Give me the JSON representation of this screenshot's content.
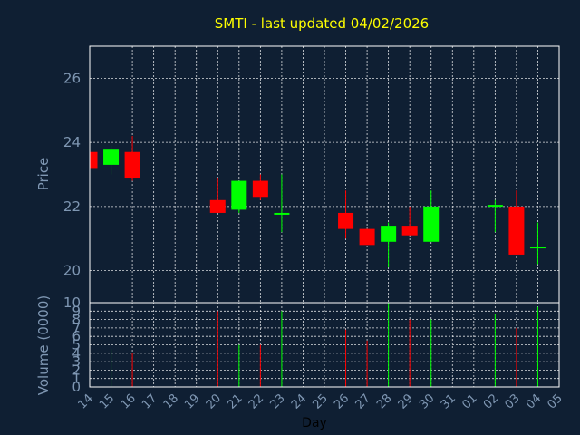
{
  "chart_data": {
    "type": "candlestick",
    "title": "SMTI - last updated 04/02/2026",
    "xlabel": "Day",
    "ylabel_price": "Price",
    "ylabel_volume": "Volume (0000)",
    "price_ylim": [
      19,
      27
    ],
    "price_ticks": [
      20,
      22,
      24,
      26
    ],
    "volume_ylim": [
      0,
      10
    ],
    "volume_ticks": [
      0,
      1,
      2,
      3,
      4,
      5,
      6,
      7,
      8,
      9,
      10
    ],
    "x_tick_labels": [
      "14",
      "15",
      "16",
      "17",
      "18",
      "19",
      "20",
      "21",
      "22",
      "23",
      "24",
      "25",
      "26",
      "27",
      "28",
      "29",
      "30",
      "31",
      "01",
      "02",
      "03",
      "04",
      "05"
    ],
    "grid": true,
    "up_color": "#00ff00",
    "down_color": "#ff0000",
    "background_color": "#0f1f33",
    "title_color": "#ffff00",
    "candles": [
      {
        "day": "14",
        "open": 23.7,
        "high": 23.7,
        "low": 23.1,
        "close": 23.2,
        "volume": 0
      },
      {
        "day": "15",
        "open": 23.3,
        "high": 23.9,
        "low": 23.0,
        "close": 23.8,
        "volume": 4.5
      },
      {
        "day": "16",
        "open": 23.7,
        "high": 24.2,
        "low": 22.8,
        "close": 22.9,
        "volume": 4.0
      },
      {
        "day": "20",
        "open": 22.2,
        "high": 22.9,
        "low": 21.8,
        "close": 21.8,
        "volume": 9.0
      },
      {
        "day": "21",
        "open": 21.9,
        "high": 22.8,
        "low": 21.8,
        "close": 22.8,
        "volume": 5.0
      },
      {
        "day": "22",
        "open": 22.8,
        "high": 23.0,
        "low": 22.2,
        "close": 22.3,
        "volume": 5.0
      },
      {
        "day": "23",
        "open": 21.8,
        "high": 23.0,
        "low": 21.2,
        "close": 21.8,
        "volume": 9.0
      },
      {
        "day": "26",
        "open": 21.8,
        "high": 22.5,
        "low": 21.0,
        "close": 21.3,
        "volume": 6.8
      },
      {
        "day": "27",
        "open": 21.3,
        "high": 21.3,
        "low": 20.8,
        "close": 20.8,
        "volume": 5.5
      },
      {
        "day": "28",
        "open": 20.9,
        "high": 21.5,
        "low": 20.1,
        "close": 21.4,
        "volume": 10.0
      },
      {
        "day": "29",
        "open": 21.4,
        "high": 22.0,
        "low": 21.1,
        "close": 21.1,
        "volume": 8.0
      },
      {
        "day": "30",
        "open": 20.9,
        "high": 22.5,
        "low": 20.9,
        "close": 22.0,
        "volume": 8.0
      },
      {
        "day": "02",
        "open": 22.0,
        "high": 22.2,
        "low": 21.2,
        "close": 22.05,
        "volume": 8.6
      },
      {
        "day": "03",
        "open": 22.0,
        "high": 22.5,
        "low": 20.5,
        "close": 20.5,
        "volume": 7.0
      },
      {
        "day": "04",
        "open": 20.7,
        "high": 21.5,
        "low": 20.2,
        "close": 20.75,
        "volume": 9.5
      }
    ]
  }
}
